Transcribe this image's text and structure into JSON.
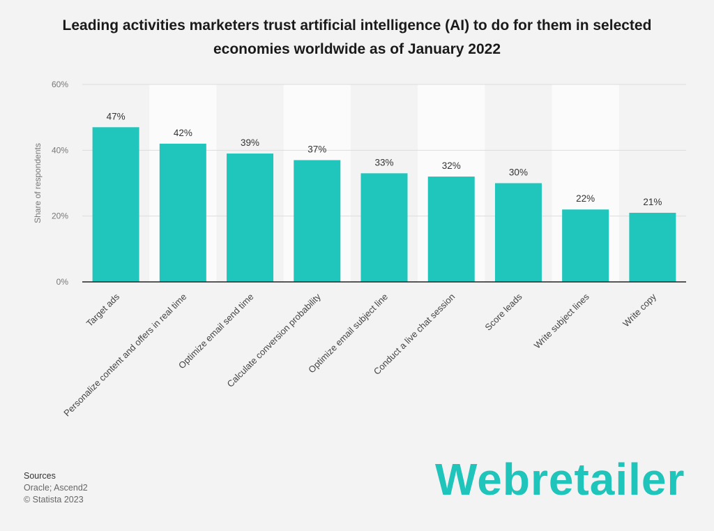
{
  "chart_data": {
    "type": "bar",
    "title": "Leading activities marketers trust artificial intelligence (AI) to do for them in selected economies worldwide as of January 2022",
    "ylabel": "Share of respondents",
    "xlabel": "",
    "ylim": [
      0,
      60
    ],
    "yticks": [
      "0%",
      "20%",
      "40%",
      "60%"
    ],
    "categories": [
      "Target ads",
      "Personalize content and offers in real time",
      "Optimize email send time",
      "Calculate conversion probability",
      "Optimize email subject line",
      "Conduct a live chat session",
      "Score leads",
      "Write subject lines",
      "Write copy"
    ],
    "values": [
      47,
      42,
      39,
      37,
      33,
      32,
      30,
      22,
      21
    ],
    "data_labels": [
      "47%",
      "42%",
      "39%",
      "37%",
      "33%",
      "32%",
      "30%",
      "22%",
      "21%"
    ],
    "grid": true,
    "bar_color": "#20c5bc"
  },
  "sources": {
    "heading": "Sources",
    "line1": "Oracle; Ascend2",
    "line2": "© Statista 2023"
  },
  "brand": {
    "logo_text": "Webretailer"
  }
}
